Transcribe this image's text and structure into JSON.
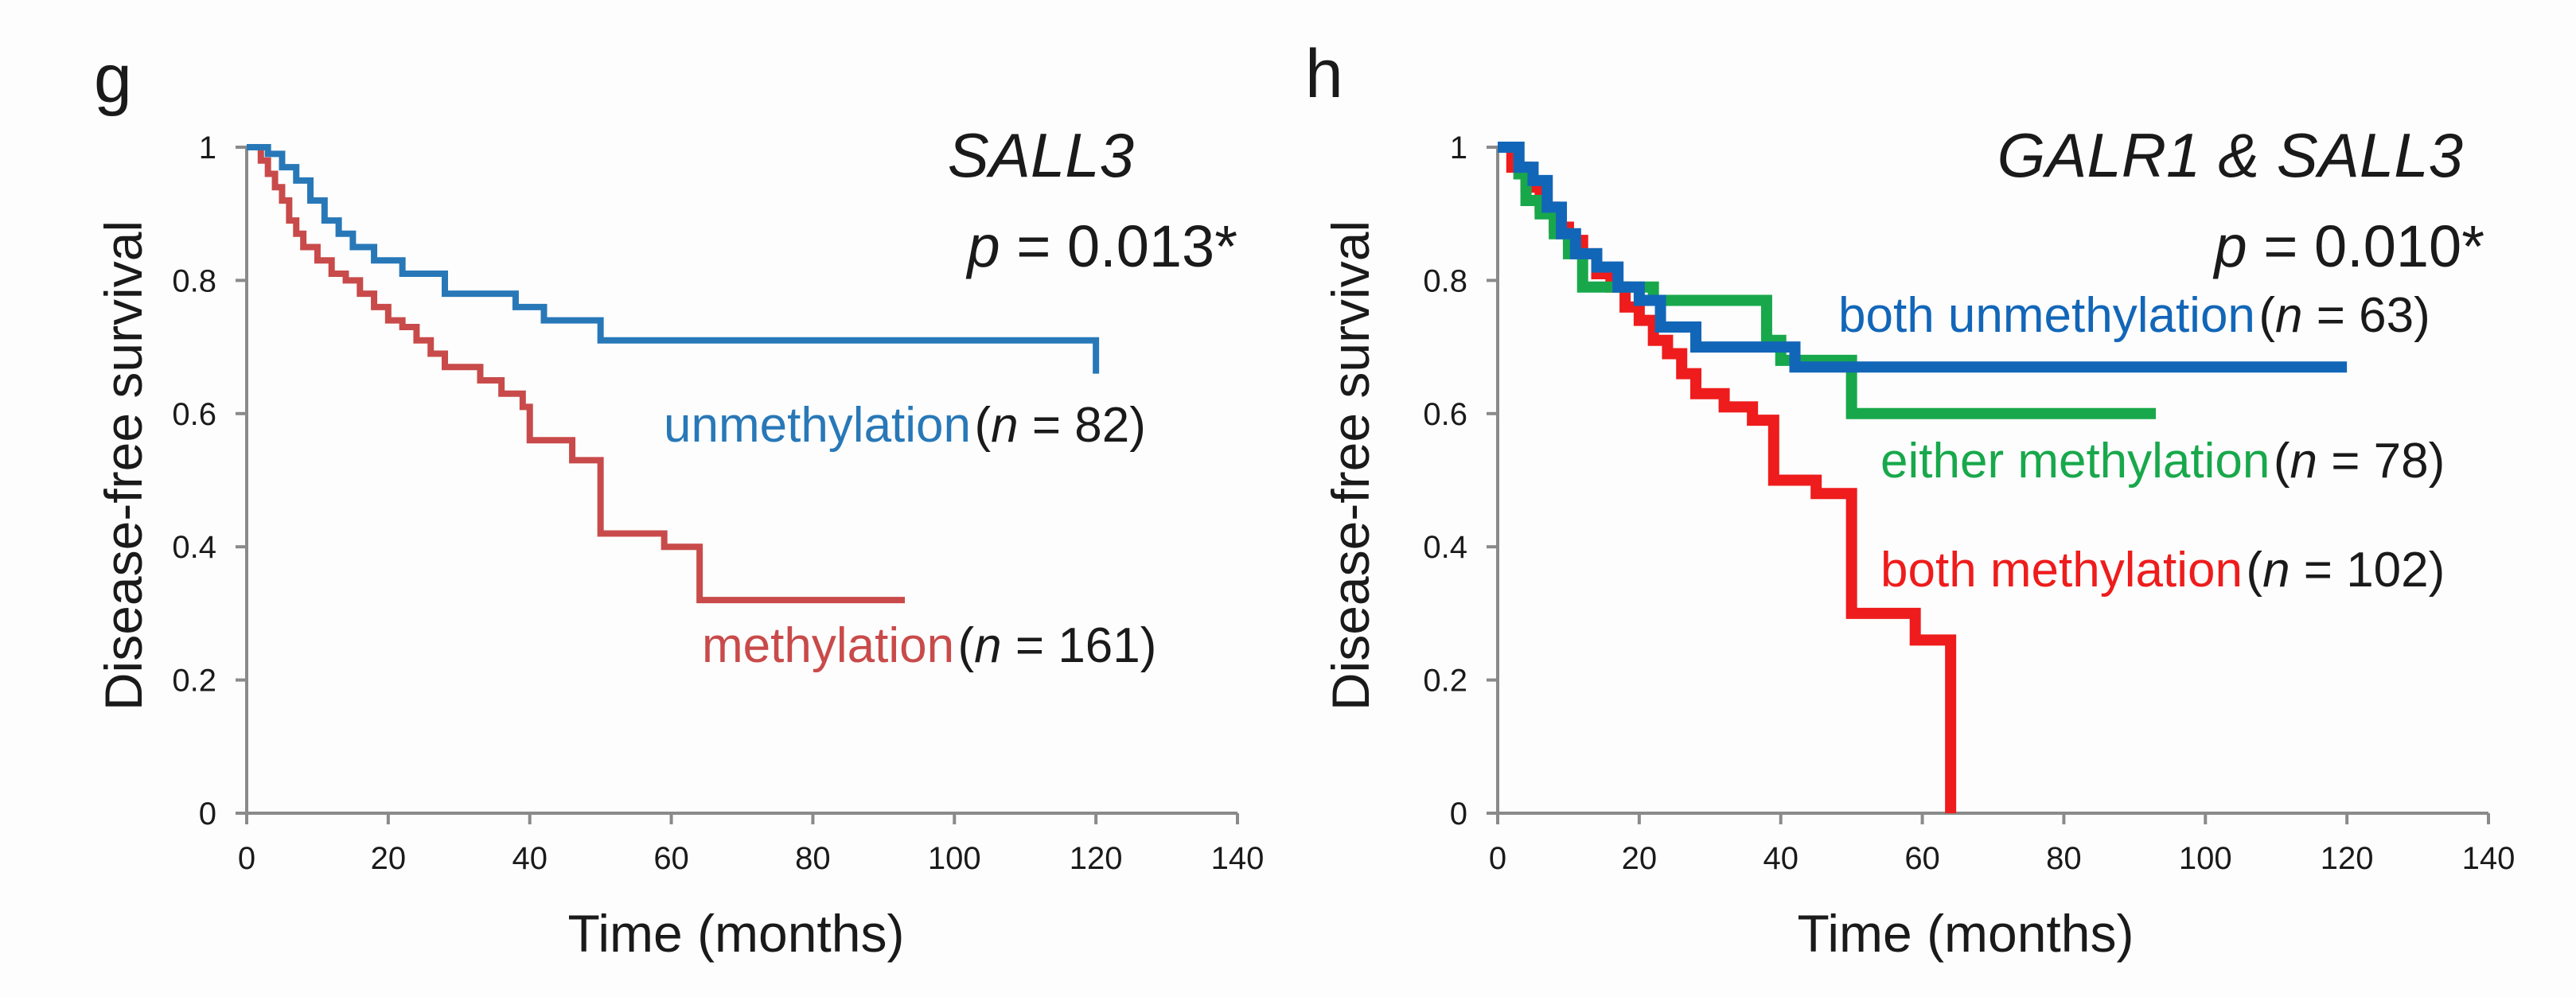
{
  "chart_data": [
    {
      "type": "line",
      "panel_label": "g",
      "gene_title": "SALL3",
      "p_prefix": "p",
      "p_value": " = 0.013*",
      "xlabel": "Time (months)",
      "ylabel": "Disease-free survival",
      "xlim": [
        0,
        140
      ],
      "ylim": [
        0,
        1
      ],
      "x_ticks": [
        "0",
        "20",
        "40",
        "60",
        "80",
        "100",
        "120",
        "140"
      ],
      "y_ticks": [
        "0",
        "0.2",
        "0.4",
        "0.6",
        "0.8",
        "1"
      ],
      "series": [
        {
          "name": "unmethylation",
          "n_label": "(",
          "n_symbol": "n",
          "n_rest": " = 82)",
          "color": "#2878b8",
          "times": [
            0,
            3,
            5,
            7,
            9,
            11,
            13,
            15,
            18,
            22,
            28,
            38,
            42,
            50,
            120
          ],
          "survival": [
            1.0,
            0.99,
            0.97,
            0.95,
            0.92,
            0.89,
            0.87,
            0.85,
            0.83,
            0.81,
            0.78,
            0.76,
            0.74,
            0.71,
            0.66
          ]
        },
        {
          "name": "methylation",
          "n_label": "(",
          "n_symbol": "n",
          "n_rest": " = 161)",
          "color": "#c94a4a",
          "times": [
            0,
            2,
            3,
            4,
            5,
            6,
            7,
            8,
            10,
            12,
            14,
            16,
            18,
            20,
            22,
            24,
            26,
            28,
            33,
            36,
            39,
            40,
            46,
            50,
            59,
            64,
            93
          ],
          "survival": [
            1.0,
            0.98,
            0.96,
            0.94,
            0.92,
            0.89,
            0.87,
            0.85,
            0.83,
            0.81,
            0.8,
            0.78,
            0.76,
            0.74,
            0.73,
            0.71,
            0.69,
            0.67,
            0.65,
            0.63,
            0.61,
            0.56,
            0.53,
            0.42,
            0.4,
            0.32,
            0.32
          ]
        }
      ]
    },
    {
      "type": "line",
      "panel_label": "h",
      "gene_title": "GALR1 & SALL3",
      "p_prefix": "p",
      "p_value": " = 0.010*",
      "xlabel": "Time (months)",
      "ylabel": "Disease-free survival",
      "xlim": [
        0,
        140
      ],
      "ylim": [
        0,
        1
      ],
      "x_ticks": [
        "0",
        "20",
        "40",
        "60",
        "80",
        "100",
        "120",
        "140"
      ],
      "y_ticks": [
        "0",
        "0.2",
        "0.4",
        "0.6",
        "0.8",
        "1"
      ],
      "series": [
        {
          "name": "both unmethylation",
          "n_label": "(",
          "n_symbol": "n",
          "n_rest": " = 63)",
          "color": "#1266b8",
          "times": [
            0,
            3,
            5,
            7,
            9,
            11,
            14,
            17,
            20,
            23,
            28,
            42,
            120
          ],
          "survival": [
            1.0,
            0.97,
            0.95,
            0.91,
            0.87,
            0.84,
            0.82,
            0.79,
            0.77,
            0.73,
            0.7,
            0.67,
            0.67
          ]
        },
        {
          "name": "either methylation",
          "n_label": "(",
          "n_symbol": "n",
          "n_rest": " = 78)",
          "color": "#18a84b",
          "times": [
            0,
            3,
            4,
            6,
            8,
            10,
            12,
            22,
            38,
            40,
            50,
            93
          ],
          "survival": [
            1.0,
            0.96,
            0.92,
            0.9,
            0.87,
            0.84,
            0.79,
            0.77,
            0.71,
            0.68,
            0.6,
            0.6
          ]
        },
        {
          "name": "both methylation",
          "n_label": "(",
          "n_symbol": "n",
          "n_rest": " = 102)",
          "color": "#ee1c1c",
          "times": [
            0,
            2,
            4,
            6,
            8,
            10,
            12,
            14,
            16,
            18,
            20,
            22,
            24,
            26,
            28,
            32,
            36,
            39,
            45,
            50,
            59,
            64,
            64
          ],
          "survival": [
            1.0,
            0.97,
            0.94,
            0.91,
            0.88,
            0.86,
            0.84,
            0.81,
            0.79,
            0.76,
            0.74,
            0.71,
            0.69,
            0.66,
            0.63,
            0.61,
            0.59,
            0.5,
            0.48,
            0.3,
            0.26,
            0.26,
            0.0
          ]
        }
      ]
    }
  ]
}
